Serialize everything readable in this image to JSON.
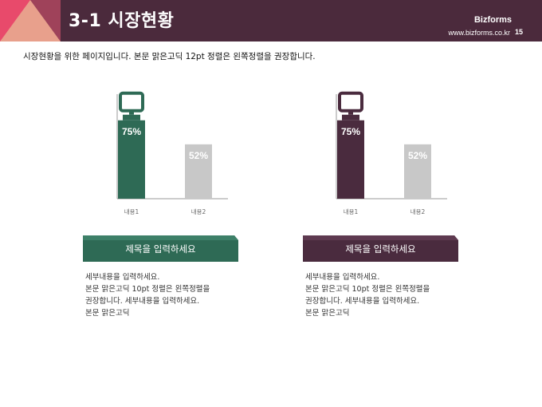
{
  "header": {
    "title": "3-1 시장현황",
    "brand": "Bizforms",
    "site": "www.bizforms.co.kr",
    "page_number": "15"
  },
  "intro": "시장현황을 위한 페이지입니다. 본문 맑은고딕 12pt 정렬은 왼쪽정렬을 권장합니다.",
  "colors": {
    "header_bg": "#4b2a3c",
    "green": "#2e6a55",
    "purple": "#4a2b3e",
    "gray_bar": "#c8c8c8",
    "pink": "#e34a6a",
    "peach": "#e8a08c"
  },
  "icons": [
    "monitor-icon",
    "monitor-icon"
  ],
  "chart_data": [
    {
      "type": "bar",
      "categories": [
        "내용1",
        "내용2"
      ],
      "values": [
        75,
        52
      ],
      "data_labels": [
        "75%",
        "52%"
      ],
      "ylim": [
        0,
        100
      ],
      "colors": [
        "#2e6a55",
        "#c8c8c8"
      ]
    },
    {
      "type": "bar",
      "categories": [
        "내용1",
        "내용2"
      ],
      "values": [
        75,
        52
      ],
      "data_labels": [
        "75%",
        "52%"
      ],
      "ylim": [
        0,
        100
      ],
      "colors": [
        "#4a2b3e",
        "#c8c8c8"
      ]
    }
  ],
  "sections": [
    {
      "heading": "제목을 입력하세요",
      "lines": [
        "세부내용을 입력하세요.",
        "본문 맑은고딕 10pt 정렬은 왼쪽정렬을",
        "권장합니다. 세부내용을 입력하세요.",
        "본문 맑은고딕"
      ]
    },
    {
      "heading": "제목을 입력하세요",
      "lines": [
        "세부내용을 입력하세요.",
        "본문 맑은고딕 10pt 정렬은 왼쪽정렬을",
        "권장합니다. 세부내용을 입력하세요.",
        "본문 맑은고딕"
      ]
    }
  ]
}
